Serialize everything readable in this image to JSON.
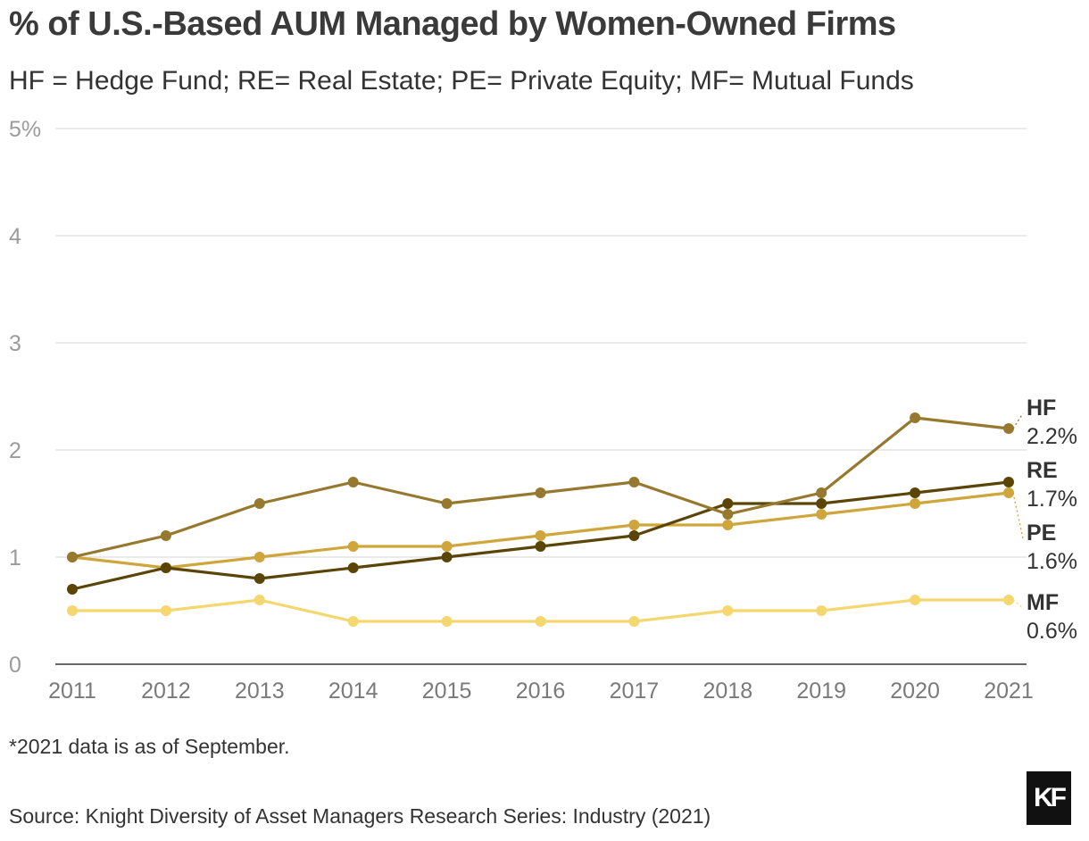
{
  "header": {
    "title": "% of U.S.-Based AUM Managed by Women-Owned Firms",
    "subtitle": "HF = Hedge Fund; RE= Real Estate; PE= Private Equity; MF= Mutual Funds"
  },
  "footer": {
    "note": "*2021 data is as of September.",
    "source": "Source: Knight Diversity of Asset Managers Research Series: Industry (2021)",
    "logo_text": "KF"
  },
  "chart_data": {
    "type": "line",
    "title": "% of U.S.-Based AUM Managed by Women-Owned Firms",
    "subtitle": "HF = Hedge Fund; RE= Real Estate; PE= Private Equity; MF= Mutual Funds",
    "xlabel": "",
    "ylabel": "",
    "x": [
      "2011",
      "2012",
      "2013",
      "2014",
      "2015",
      "2016",
      "2017",
      "2018",
      "2019",
      "2020",
      "2021"
    ],
    "ylim": [
      0,
      5
    ],
    "yticks": [
      "0",
      "1",
      "2",
      "3",
      "4",
      "5%"
    ],
    "grid": true,
    "legend": "end-of-line labels (right)",
    "series": [
      {
        "name": "HF",
        "end_label": "2.2%",
        "color": "#96782e",
        "values": [
          1.0,
          1.2,
          1.5,
          1.7,
          1.5,
          1.6,
          1.7,
          1.4,
          1.6,
          2.3,
          2.2
        ]
      },
      {
        "name": "RE",
        "end_label": "1.7%",
        "color": "#5a4507",
        "values": [
          0.7,
          0.9,
          0.8,
          0.9,
          1.0,
          1.1,
          1.2,
          1.5,
          1.5,
          1.6,
          1.7
        ]
      },
      {
        "name": "PE",
        "end_label": "1.6%",
        "color": "#cfa63c",
        "values": [
          1.0,
          0.9,
          1.0,
          1.1,
          1.1,
          1.2,
          1.3,
          1.3,
          1.4,
          1.5,
          1.6
        ]
      },
      {
        "name": "MF",
        "end_label": "0.6%",
        "color": "#f5d770",
        "values": [
          0.5,
          0.5,
          0.6,
          0.4,
          0.4,
          0.4,
          0.4,
          0.5,
          0.5,
          0.6,
          0.6
        ]
      }
    ]
  }
}
